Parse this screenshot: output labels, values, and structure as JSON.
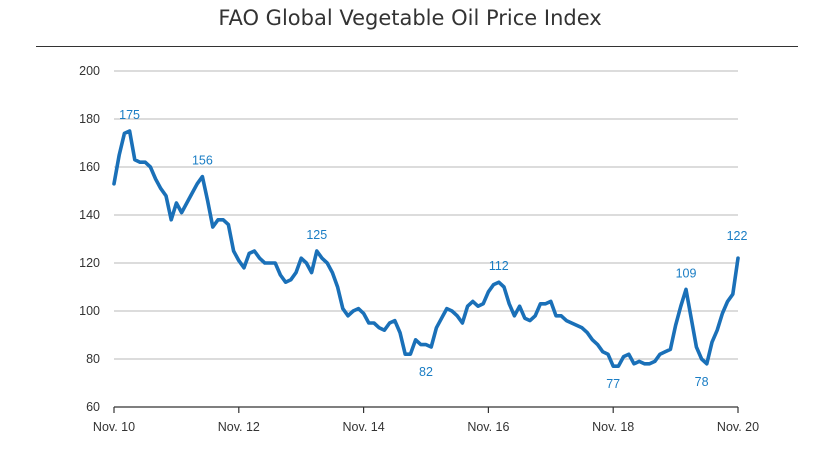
{
  "chart_data": {
    "type": "line",
    "title": "FAO Global Vegetable Oil Price Index",
    "xlabel": "",
    "ylabel": "",
    "ylim": [
      60,
      200
    ],
    "yticks": [
      60,
      80,
      100,
      120,
      140,
      160,
      180,
      200
    ],
    "xticks": [
      "Nov. 10",
      "Nov. 12",
      "Nov. 14",
      "Nov. 16",
      "Nov. 18",
      "Nov. 20"
    ],
    "grid": true,
    "line_color": "#1a70b8",
    "label_color": "#1a7dc4",
    "series": [
      {
        "x": [
          0,
          1,
          2,
          3,
          4,
          5,
          6,
          7,
          8,
          9,
          10,
          11,
          12,
          13,
          14,
          15,
          16,
          17,
          18,
          19,
          20,
          21,
          22,
          23,
          24,
          25,
          26,
          27,
          28,
          29,
          30,
          31,
          32,
          33,
          34,
          35,
          36,
          37,
          38,
          39,
          40,
          41,
          42,
          43,
          44,
          45,
          46,
          47,
          48,
          49,
          50,
          51,
          52,
          53,
          54,
          55,
          56,
          57,
          58,
          59,
          60,
          61,
          62,
          63,
          64,
          65,
          66,
          67,
          68,
          69,
          70,
          71,
          72,
          73,
          74,
          75,
          76,
          77,
          78,
          79,
          80,
          81,
          82,
          83,
          84,
          85,
          86,
          87,
          88,
          89,
          90,
          91,
          92,
          93,
          94,
          95,
          96,
          97,
          98,
          99,
          100,
          101,
          102,
          103,
          104,
          105,
          106,
          107,
          108,
          109,
          110,
          111,
          112,
          113,
          114,
          115,
          116,
          117,
          118,
          119,
          120
        ],
        "values": [
          153,
          165,
          174,
          175,
          163,
          162,
          162,
          160,
          155,
          151,
          148,
          138,
          145,
          141,
          145,
          149,
          153,
          156,
          146,
          135,
          138,
          138,
          136,
          125,
          121,
          118,
          124,
          125,
          122,
          120,
          120,
          120,
          115,
          112,
          113,
          116,
          122,
          120,
          116,
          125,
          122,
          120,
          116,
          110,
          101,
          98,
          100,
          101,
          99,
          95,
          95,
          93,
          92,
          95,
          96,
          91,
          82,
          82,
          88,
          86,
          86,
          85,
          93,
          97,
          101,
          100,
          98,
          95,
          102,
          104,
          102,
          103,
          108,
          111,
          112,
          110,
          103,
          98,
          102,
          97,
          96,
          98,
          103,
          103,
          104,
          98,
          98,
          96,
          95,
          94,
          93,
          91,
          88,
          86,
          83,
          82,
          77,
          77,
          81,
          82,
          78,
          79,
          78,
          78,
          79,
          82,
          83,
          84,
          94,
          102,
          109,
          97,
          85,
          80,
          78,
          87,
          92,
          99,
          104,
          107,
          122
        ]
      }
    ],
    "annotations": [
      {
        "x": 3,
        "y": 175,
        "text": "175"
      },
      {
        "x": 17,
        "y": 156,
        "text": "156"
      },
      {
        "x": 39,
        "y": 125,
        "text": "125"
      },
      {
        "x": 60,
        "y": 82,
        "text": "82"
      },
      {
        "x": 74,
        "y": 112,
        "text": "112"
      },
      {
        "x": 96,
        "y": 77,
        "text": "77"
      },
      {
        "x": 110,
        "y": 109,
        "text": "109"
      },
      {
        "x": 113,
        "y": 78,
        "text": "78"
      },
      {
        "x": 120,
        "y": 122,
        "text": "122"
      }
    ]
  }
}
